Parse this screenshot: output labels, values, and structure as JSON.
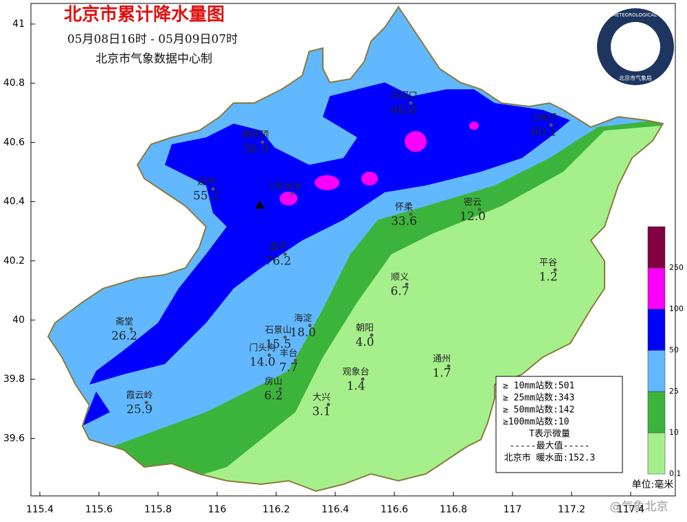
{
  "title": "北京市累计降水量图",
  "period": "05月08日16时 - 05月09日07时",
  "producer": "北京市气象数据中心制",
  "axes": {
    "lon": [
      115.4,
      115.6,
      115.8,
      116,
      116.2,
      116.4,
      116.6,
      116.8,
      117,
      117.2,
      117.4
    ],
    "lat": [
      41,
      40.8,
      40.6,
      40.4,
      40.2,
      40,
      39.8,
      39.6
    ]
  },
  "stations": [
    {
      "name": "汤河口",
      "value": "46.0"
    },
    {
      "name": "上甸子",
      "value": "60.1"
    },
    {
      "name": "佛爷顶",
      "value": "36.9"
    },
    {
      "name": "延庆",
      "value": "55.2"
    },
    {
      "name": "1号水库"
    },
    {
      "name": "怀柔",
      "value": "33.6"
    },
    {
      "name": "密云",
      "value": "12.0"
    },
    {
      "name": "昌平",
      "value": "76.2"
    },
    {
      "name": "平谷",
      "value": "1.2"
    },
    {
      "name": "顺义",
      "value": "6.7"
    },
    {
      "name": "海淀",
      "value": "18.0"
    },
    {
      "name": "石景山",
      "value": "15.5"
    },
    {
      "name": "朝阳",
      "value": "4.0"
    },
    {
      "name": "门头沟",
      "value": "14.0"
    },
    {
      "name": "丰台",
      "value": "7.7"
    },
    {
      "name": "观象台",
      "value": "1.4"
    },
    {
      "name": "通州",
      "value": "1.7"
    },
    {
      "name": "房山",
      "value": "6.2"
    },
    {
      "name": "大兴",
      "value": "3.1"
    },
    {
      "name": "霞云岭",
      "value": "25.9"
    },
    {
      "name": "斋堂",
      "value": "26.2"
    }
  ],
  "stats": [
    "≥ 10mm站数:501",
    "≥ 25mm站数:343",
    "≥ 50mm站数:142",
    "≥100mm站数:10",
    "T表示微量",
    "-----最大值-----",
    "北京市  暖水面:152.3"
  ],
  "scale": {
    "levels": [
      0.1,
      10,
      25,
      50,
      100,
      250
    ],
    "colors": [
      "#a6f08c",
      "#3cb43c",
      "#61b8ff",
      "#0000fe",
      "#fa00fa",
      "#800040"
    ]
  },
  "unit": "单位:毫米",
  "logo": {
    "en": "BEIJING METEOROLOGICAL SERVICE",
    "cn": "北京市气象局"
  },
  "watermark": "@气象北京"
}
